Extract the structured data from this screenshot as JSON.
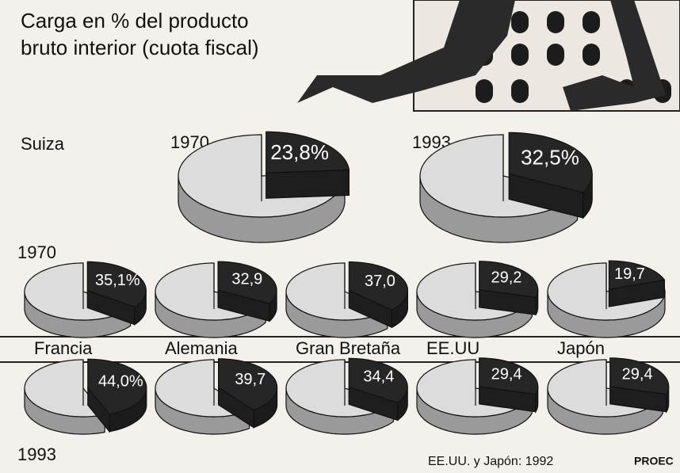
{
  "chart_data": {
    "type": "pie",
    "title": [
      "Carga en % del producto",
      "bruto interior (cuota fiscal)"
    ],
    "note": "EE.UU. y Japón: 1992",
    "source": "PROEC",
    "highlight": {
      "name": "Suiza",
      "years": [
        "1970",
        "1993"
      ],
      "values": [
        23.8,
        32.5
      ],
      "value_labels": [
        "23,8%",
        "32,5%"
      ]
    },
    "categories": [
      "Francia",
      "Alemania",
      "Gran Bretaña",
      "EE.UU",
      "Japón"
    ],
    "series": [
      {
        "name": "1970",
        "values": [
          35.1,
          32.9,
          37.0,
          29.2,
          19.7
        ],
        "value_labels": [
          "35,1%",
          "32,9",
          "37,0",
          "29,2",
          "19,7"
        ]
      },
      {
        "name": "1993",
        "values": [
          44.0,
          39.7,
          34.4,
          29.4,
          29.4
        ],
        "value_labels": [
          "44,0%",
          "39,7",
          "34,4",
          "29,4",
          "29,4"
        ]
      }
    ],
    "colors": {
      "share": "#262626",
      "rest": "#dcdcdc"
    }
  }
}
